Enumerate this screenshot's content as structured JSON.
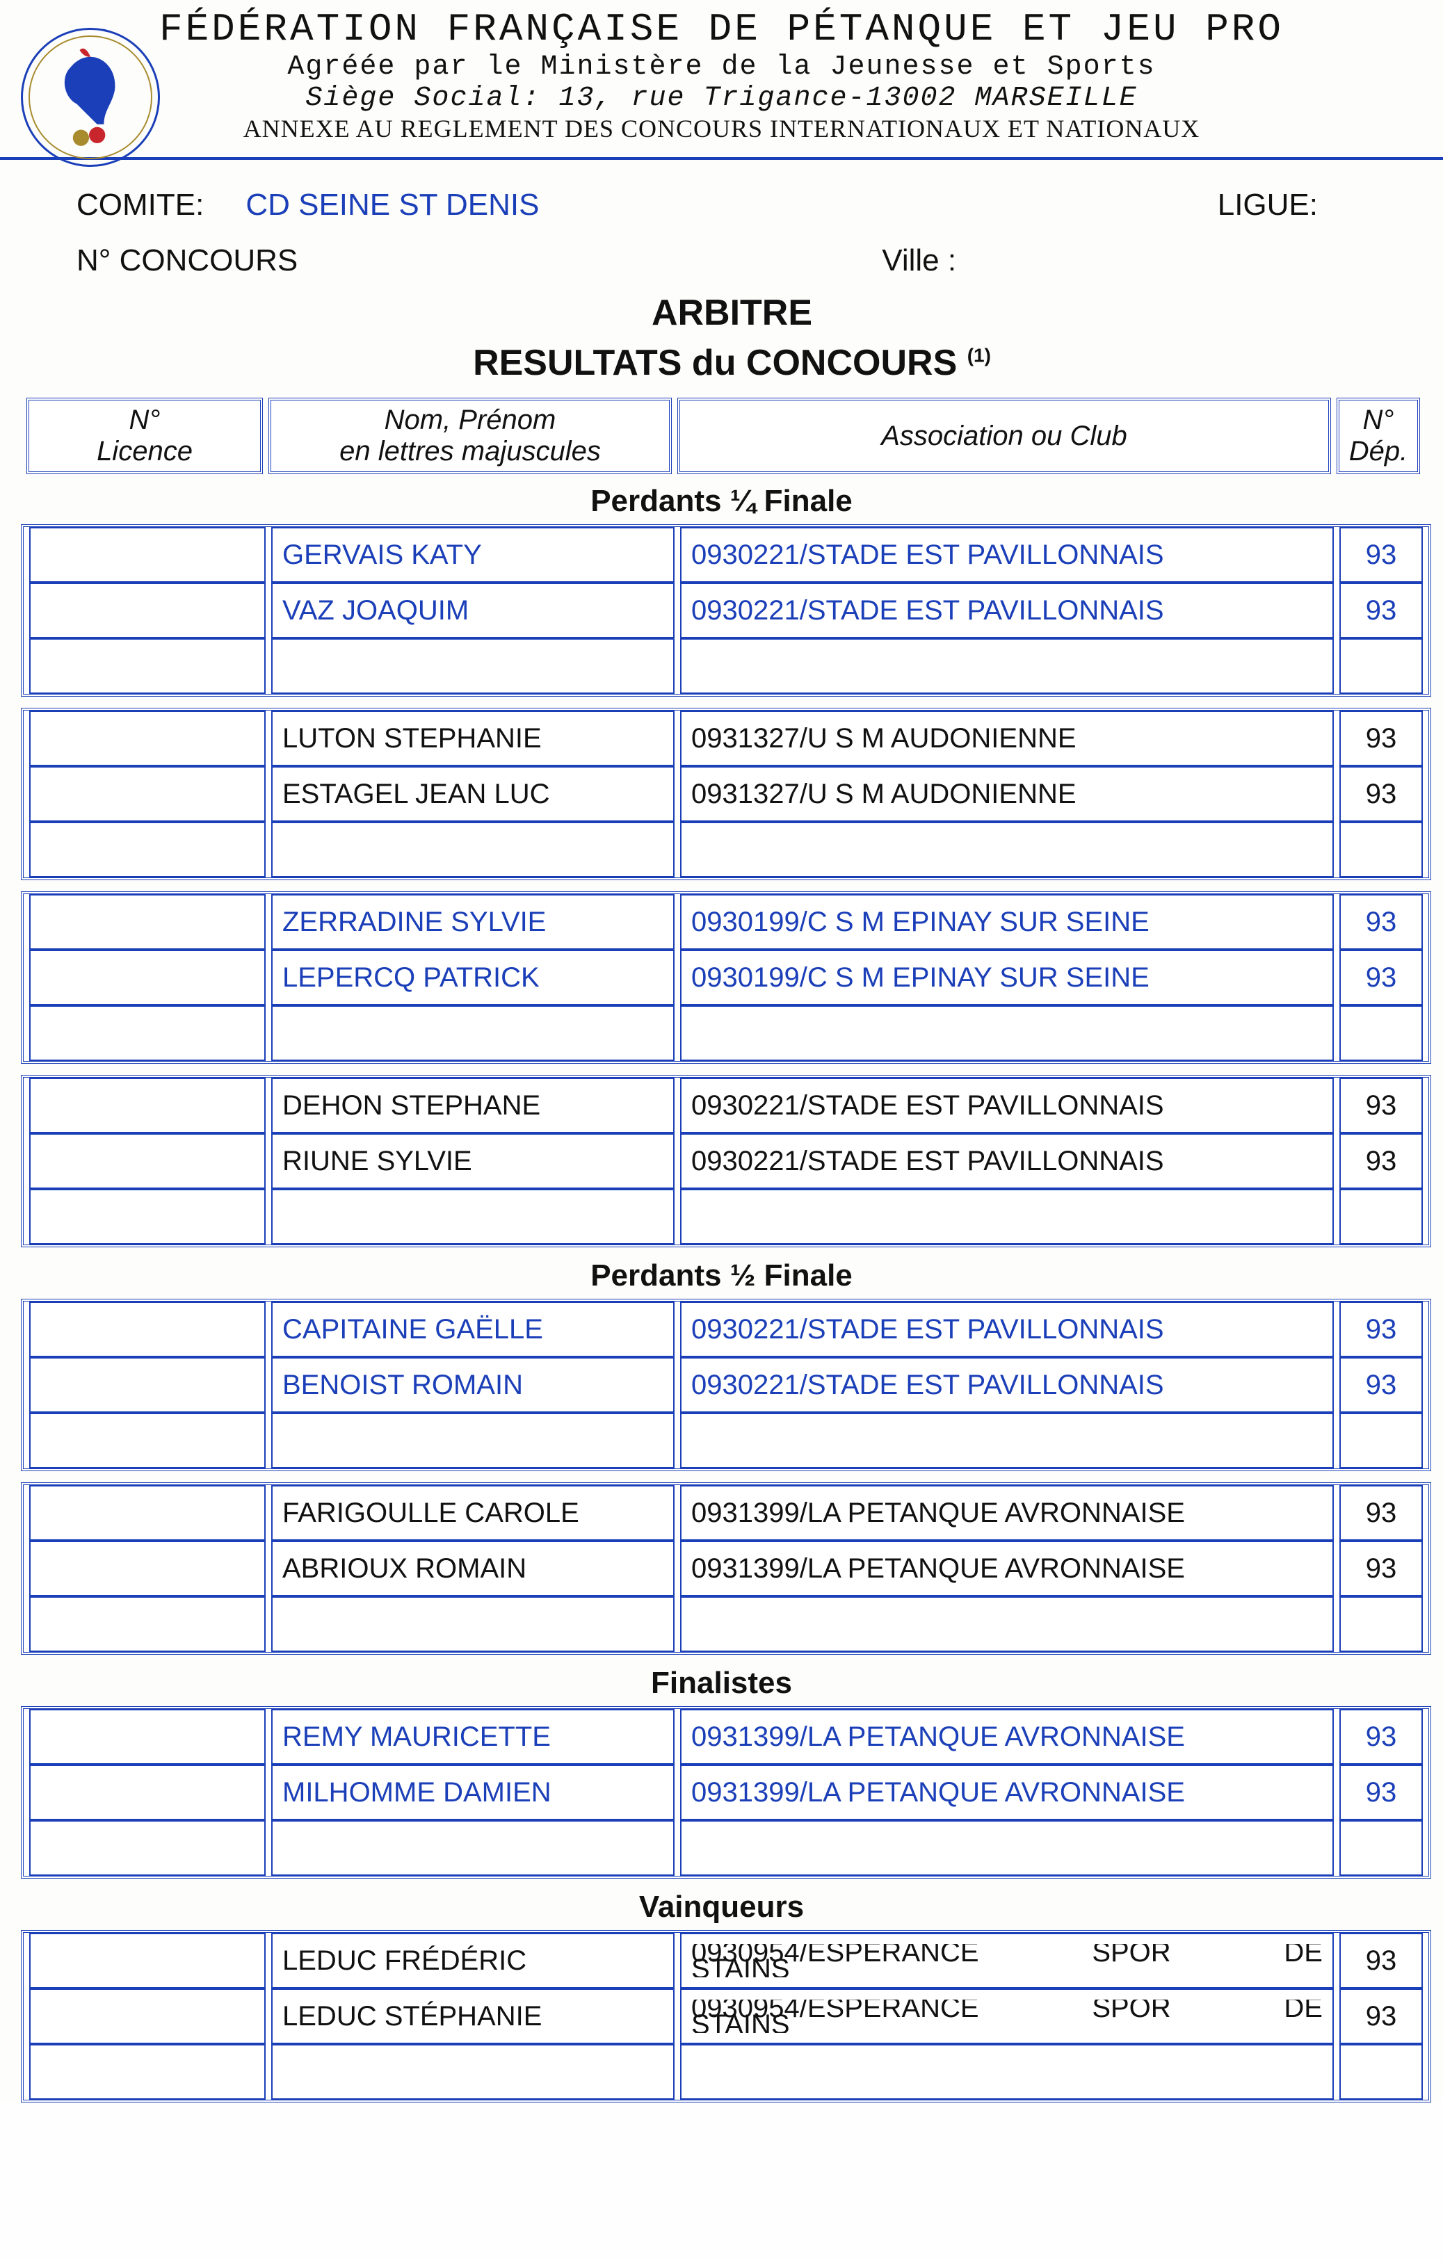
{
  "header": {
    "title": "FÉDÉRATION FRANÇAISE DE PÉTANQUE ET JEU PRO",
    "line1": "Agréée par le Ministère de la Jeunesse et Sports",
    "line2_label": "Siège Social",
    "line2_value": ": 13, rue Trigance-13002 MARSEILLE",
    "line3": "ANNEXE AU REGLEMENT DES CONCOURS INTERNATIONAUX ET NATIONAUX"
  },
  "colors": {
    "accent": "#1b3fb8",
    "text": "#111111",
    "logo_gold": "#a88b2f",
    "logo_red": "#c9252c"
  },
  "meta": {
    "comite_label": "COMITE:",
    "comite_value": "CD SEINE ST DENIS",
    "ligue_label": "LIGUE:",
    "concours_label": "N° CONCOURS",
    "ville_label": "Ville :",
    "arbitre": "ARBITRE",
    "results_title": "RESULTATS du CONCOURS",
    "results_sup": "(1)"
  },
  "columns": {
    "licence": "N°\nLicence",
    "name": "Nom, Prénom\nen lettres majuscules",
    "club": "Association ou Club",
    "dep": "N°\nDép."
  },
  "sections": [
    {
      "title": "Perdants ¼ Finale",
      "blocks": [
        {
          "color": "blue",
          "rows": [
            {
              "lic": "",
              "name": "GERVAIS KATY",
              "club": "0930221/STADE EST PAVILLONNAIS",
              "dep": "93"
            },
            {
              "lic": "",
              "name": "VAZ JOAQUIM",
              "club": "0930221/STADE EST PAVILLONNAIS",
              "dep": "93"
            },
            {
              "lic": "",
              "name": "",
              "club": "",
              "dep": ""
            }
          ]
        },
        {
          "color": "black",
          "rows": [
            {
              "lic": "",
              "name": "LUTON STEPHANIE",
              "club": "0931327/U S M AUDONIENNE",
              "dep": "93"
            },
            {
              "lic": "",
              "name": "ESTAGEL JEAN LUC",
              "club": "0931327/U S M AUDONIENNE",
              "dep": "93"
            },
            {
              "lic": "",
              "name": "",
              "club": "",
              "dep": ""
            }
          ]
        },
        {
          "color": "blue",
          "rows": [
            {
              "lic": "",
              "name": "ZERRADINE SYLVIE",
              "club": "0930199/C S M EPINAY SUR SEINE",
              "dep": "93"
            },
            {
              "lic": "",
              "name": "LEPERCQ PATRICK",
              "club": "0930199/C S M EPINAY SUR SEINE",
              "dep": "93"
            },
            {
              "lic": "",
              "name": "",
              "club": "",
              "dep": ""
            }
          ]
        },
        {
          "color": "black",
          "rows": [
            {
              "lic": "",
              "name": "DEHON STEPHANE",
              "club": "0930221/STADE EST PAVILLONNAIS",
              "dep": "93"
            },
            {
              "lic": "",
              "name": "RIUNE SYLVIE",
              "club": "0930221/STADE EST PAVILLONNAIS",
              "dep": "93"
            },
            {
              "lic": "",
              "name": "",
              "club": "",
              "dep": ""
            }
          ]
        }
      ]
    },
    {
      "title": "Perdants ½ Finale",
      "blocks": [
        {
          "color": "blue",
          "rows": [
            {
              "lic": "",
              "name": "CAPITAINE GAËLLE",
              "club": "0930221/STADE EST PAVILLONNAIS",
              "dep": "93"
            },
            {
              "lic": "",
              "name": "BENOIST ROMAIN",
              "club": "0930221/STADE EST PAVILLONNAIS",
              "dep": "93"
            },
            {
              "lic": "",
              "name": "",
              "club": "",
              "dep": ""
            }
          ]
        },
        {
          "color": "black",
          "rows": [
            {
              "lic": "",
              "name": "FARIGOULLE CAROLE",
              "club": "0931399/LA PETANQUE AVRONNAISE",
              "dep": "93"
            },
            {
              "lic": "",
              "name": "ABRIOUX ROMAIN",
              "club": "0931399/LA PETANQUE AVRONNAISE",
              "dep": "93"
            },
            {
              "lic": "",
              "name": "",
              "club": "",
              "dep": ""
            }
          ]
        }
      ]
    },
    {
      "title": "Finalistes",
      "blocks": [
        {
          "color": "blue",
          "rows": [
            {
              "lic": "",
              "name": "REMY MAURICETTE",
              "club": "0931399/LA PETANQUE AVRONNAISE",
              "dep": "93"
            },
            {
              "lic": "",
              "name": "MILHOMME DAMIEN",
              "club": "0931399/LA PETANQUE AVRONNAISE",
              "dep": "93"
            },
            {
              "lic": "",
              "name": "",
              "club": "",
              "dep": ""
            }
          ]
        }
      ]
    },
    {
      "title": "Vainqueurs",
      "blocks": [
        {
          "color": "black",
          "club_style": "spaced-trunc",
          "rows": [
            {
              "lic": "",
              "name": "LEDUC FRÉDÉRIC",
              "club_parts": [
                "0930954/ESPERANCE",
                "SPOR",
                "DE"
              ],
              "club_extra": "STAINS",
              "dep": "93"
            },
            {
              "lic": "",
              "name": "LEDUC STÉPHANIE",
              "club_parts": [
                "0930954/ESPERANCE",
                "SPOR",
                "DE"
              ],
              "club_extra": "STAINS",
              "dep": "93"
            },
            {
              "lic": "",
              "name": "",
              "club": "",
              "dep": ""
            }
          ]
        }
      ]
    }
  ]
}
